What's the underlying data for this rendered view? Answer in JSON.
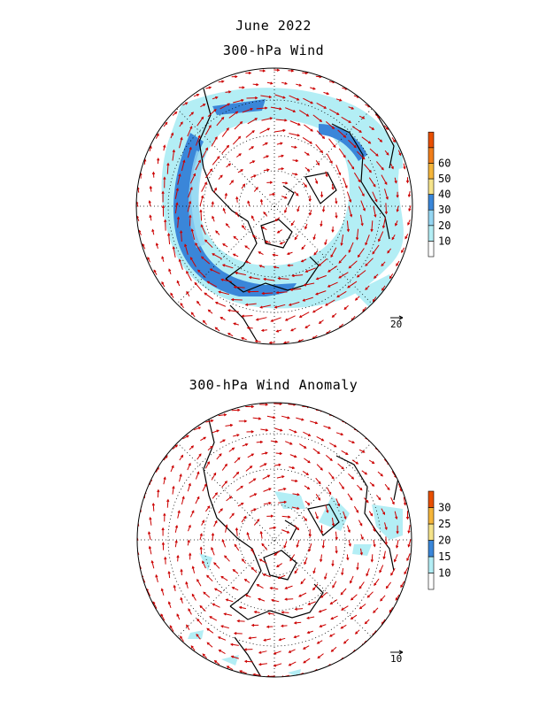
{
  "page": {
    "title": "June 2022"
  },
  "panels": [
    {
      "id": "wind",
      "title": "300-hPa Wind",
      "reference_vector_label": "20",
      "colorbar": {
        "levels": [
          "10",
          "20",
          "30",
          "40",
          "50",
          "60"
        ],
        "colors": [
          "#ffffff",
          "#b3eef5",
          "#94d6f2",
          "#3a86d9",
          "#f5e38a",
          "#f5b53a",
          "#f07d1a",
          "#e84f00"
        ]
      },
      "map_fill_colors": {
        "light": "#b3eef5",
        "medium": "#94d6f2",
        "strong": "#3a86d9"
      }
    },
    {
      "id": "anomaly",
      "title": "300-hPa Wind Anomaly",
      "reference_vector_label": "10",
      "colorbar": {
        "levels": [
          "10",
          "15",
          "20",
          "25",
          "30"
        ],
        "colors": [
          "#ffffff",
          "#b3eef5",
          "#3a86d9",
          "#f5e38a",
          "#f5b53a",
          "#e84f00"
        ]
      },
      "map_fill_colors": {
        "light": "#b3eef5",
        "medium": "#94d6f2",
        "strong": "#3a86d9"
      }
    }
  ],
  "vector_color": "#cc0000"
}
